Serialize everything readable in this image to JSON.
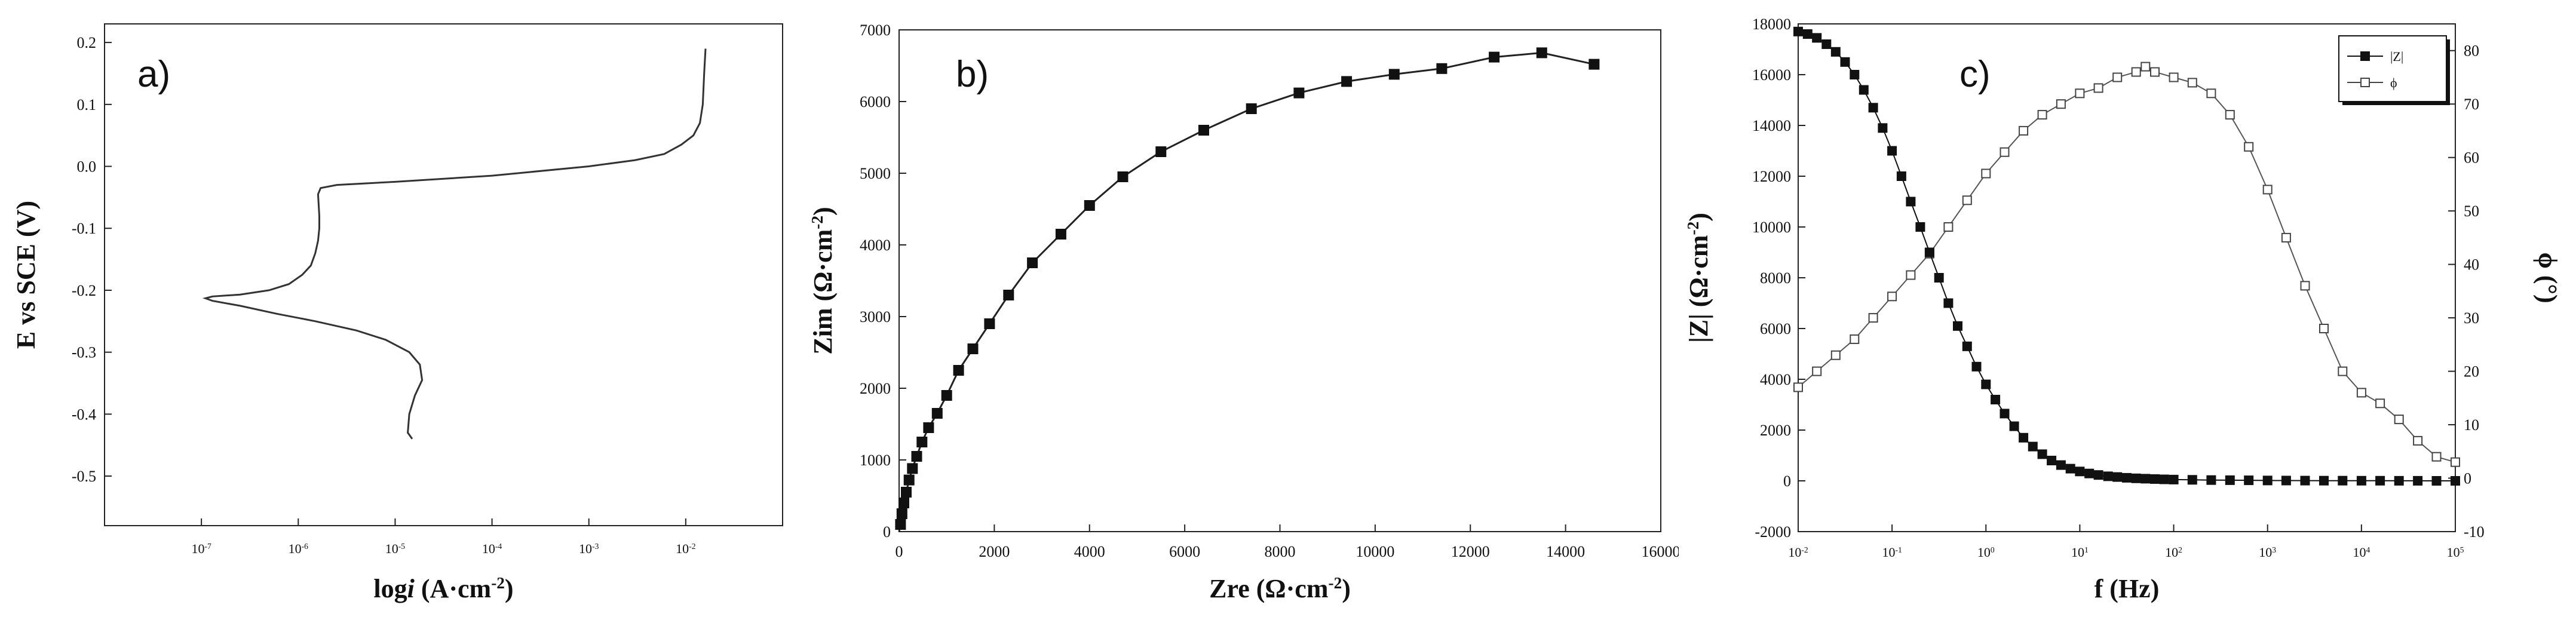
{
  "chart_data": [
    {
      "panel": "a)",
      "type": "line",
      "xlabel_main": "log",
      "xlabel_ital": "i",
      "xlabel_unit": " (A·cm",
      "xlabel_sup": "-2",
      "xlabel_end": ")",
      "ylabel": "E vs SCE (V)",
      "xscale": "log",
      "xlim": [
        1e-08,
        0.1
      ],
      "ylim": [
        -0.58,
        0.23
      ],
      "x_tick_labels": [
        {
          "base": "10",
          "exp": "-7",
          "value": 1e-07
        },
        {
          "base": "10",
          "exp": "-6",
          "value": 1e-06
        },
        {
          "base": "10",
          "exp": "-5",
          "value": 1e-05
        },
        {
          "base": "10",
          "exp": "-4",
          "value": 0.0001
        },
        {
          "base": "10",
          "exp": "-3",
          "value": 0.001
        },
        {
          "base": "10",
          "exp": "-2",
          "value": 0.01
        }
      ],
      "y_ticks": [
        -0.5,
        -0.4,
        -0.3,
        -0.2,
        -0.1,
        0.0,
        0.1,
        0.2
      ],
      "y_tick_labels": [
        "-0.5",
        "-0.4",
        "-0.3",
        "-0.2",
        "-0.1",
        "0.0",
        "0.1",
        "0.2"
      ],
      "series": [
        {
          "x": [
            1.5e-05,
            1.35e-05,
            1.4e-05,
            1.6e-05,
            1.9e-05,
            1.8e-05,
            1.4e-05,
            8e-06,
            4e-06,
            1.5e-06,
            6e-07,
            2.5e-07,
            1.3e-07,
            1.1e-07,
            1.3e-07,
            2.5e-07,
            5e-07,
            8e-07,
            1.1e-06,
            1.35e-06,
            1.5e-06,
            1.6e-06,
            1.65e-06,
            1.65e-06,
            1.62e-06,
            1.6e-06,
            1.7e-06,
            2.5e-06,
            1e-05,
            0.0001,
            0.001,
            0.003,
            0.006,
            0.009,
            0.012,
            0.014,
            0.015,
            0.0155,
            0.016
          ],
          "y": [
            -0.44,
            -0.43,
            -0.4,
            -0.37,
            -0.345,
            -0.32,
            -0.3,
            -0.28,
            -0.265,
            -0.25,
            -0.238,
            -0.225,
            -0.217,
            -0.213,
            -0.21,
            -0.207,
            -0.2,
            -0.19,
            -0.175,
            -0.16,
            -0.14,
            -0.12,
            -0.1,
            -0.08,
            -0.06,
            -0.045,
            -0.035,
            -0.03,
            -0.025,
            -0.015,
            0.0,
            0.01,
            0.02,
            0.035,
            0.05,
            0.07,
            0.1,
            0.15,
            0.19
          ]
        }
      ]
    },
    {
      "panel": "b)",
      "type": "line",
      "xlabel_main": "Zre (Ω·cm",
      "xlabel_sup": "-2",
      "xlabel_end": ")",
      "ylabel_main": "Zim (Ω·cm",
      "ylabel_sup": "-2",
      "ylabel_end": ")",
      "xlim": [
        0,
        16000
      ],
      "ylim": [
        0,
        7000
      ],
      "x_ticks": [
        0,
        2000,
        4000,
        6000,
        8000,
        10000,
        12000,
        14000,
        16000
      ],
      "x_tick_labels": [
        "0",
        "2000",
        "4000",
        "6000",
        "8000",
        "10000",
        "12000",
        "14000",
        "16000"
      ],
      "y_ticks": [
        0,
        1000,
        2000,
        3000,
        4000,
        5000,
        6000,
        7000
      ],
      "y_tick_labels": [
        "0",
        "1000",
        "2000",
        "3000",
        "4000",
        "5000",
        "6000",
        "7000"
      ],
      "series": [
        {
          "x": [
            30,
            60,
            100,
            150,
            210,
            280,
            370,
            480,
            620,
            800,
            1000,
            1250,
            1550,
            1900,
            2300,
            2800,
            3400,
            4000,
            4700,
            5500,
            6400,
            7400,
            8400,
            9400,
            10400,
            11400,
            12500,
            13500,
            14600
          ],
          "y": [
            100,
            250,
            400,
            550,
            720,
            880,
            1050,
            1250,
            1450,
            1650,
            1900,
            2250,
            2550,
            2900,
            3300,
            3750,
            4150,
            4550,
            4950,
            5300,
            5600,
            5900,
            6120,
            6280,
            6380,
            6460,
            6620,
            6680,
            6520
          ]
        }
      ]
    },
    {
      "panel": "c)",
      "type": "line",
      "xlabel": "f (Hz)",
      "ylabel_left_main": "|Z| (Ω·cm",
      "ylabel_left_sup": "-2",
      "ylabel_left_end": ")",
      "ylabel_right": "ϕ (°)",
      "xscale": "log",
      "xlim": [
        0.01,
        100000
      ],
      "ylim_left": [
        -2000,
        18000
      ],
      "ylim_right": [
        -10,
        85
      ],
      "x_tick_labels": [
        {
          "base": "10",
          "exp": "-2",
          "value": 0.01
        },
        {
          "base": "10",
          "exp": "-1",
          "value": 0.1
        },
        {
          "base": "10",
          "exp": "0",
          "value": 1
        },
        {
          "base": "10",
          "exp": "1",
          "value": 10
        },
        {
          "base": "10",
          "exp": "2",
          "value": 100
        },
        {
          "base": "10",
          "exp": "3",
          "value": 1000
        },
        {
          "base": "10",
          "exp": "4",
          "value": 10000
        },
        {
          "base": "10",
          "exp": "5",
          "value": 100000
        }
      ],
      "y_left_ticks": [
        -2000,
        0,
        2000,
        4000,
        6000,
        8000,
        10000,
        12000,
        14000,
        16000,
        18000
      ],
      "y_left_tick_labels": [
        "-2000",
        "0",
        "2000",
        "4000",
        "6000",
        "8000",
        "10000",
        "12000",
        "14000",
        "16000",
        "18000"
      ],
      "y_right_ticks": [
        -10,
        0,
        10,
        20,
        30,
        40,
        50,
        60,
        70,
        80
      ],
      "y_right_tick_labels": [
        "-10",
        "0",
        "10",
        "20",
        "30",
        "40",
        "50",
        "60",
        "70",
        "80"
      ],
      "legend": {
        "placement": "top-right",
        "entries": [
          "|Z|",
          "ϕ"
        ]
      },
      "series": [
        {
          "name": "|Z|",
          "axis": "left",
          "x": [
            0.01,
            0.0126,
            0.0158,
            0.02,
            0.0251,
            0.0316,
            0.0398,
            0.05,
            0.063,
            0.0794,
            0.1,
            0.126,
            0.158,
            0.2,
            0.251,
            0.316,
            0.398,
            0.5,
            0.63,
            0.794,
            1,
            1.26,
            1.58,
            2,
            2.51,
            3.16,
            3.98,
            5,
            6.3,
            7.94,
            10,
            12.6,
            15.8,
            20,
            25.1,
            31.6,
            39.8,
            50,
            63,
            79.4,
            100,
            158,
            251,
            398,
            630,
            1000,
            1580,
            2510,
            3980,
            6300,
            10000,
            15800,
            25100,
            39800,
            63000,
            100000
          ],
          "y": [
            17700,
            17600,
            17450,
            17200,
            16900,
            16500,
            16000,
            15400,
            14700,
            13900,
            13000,
            12000,
            11000,
            10000,
            9000,
            8000,
            7000,
            6100,
            5300,
            4500,
            3800,
            3200,
            2650,
            2150,
            1700,
            1350,
            1050,
            800,
            620,
            480,
            370,
            290,
            230,
            180,
            150,
            120,
            100,
            85,
            70,
            60,
            50,
            40,
            30,
            25,
            20,
            15,
            12,
            10,
            8,
            6,
            5,
            4,
            3,
            2,
            1,
            0
          ]
        },
        {
          "name": "ϕ",
          "axis": "right",
          "x": [
            0.01,
            0.0158,
            0.0251,
            0.0398,
            0.063,
            0.1,
            0.158,
            0.251,
            0.398,
            0.63,
            1,
            1.58,
            2.51,
            3.98,
            6.3,
            10,
            15.8,
            25.1,
            39.8,
            50,
            63,
            100,
            158,
            251,
            398,
            630,
            1000,
            1580,
            2510,
            3980,
            6300,
            10000,
            15800,
            25100,
            39800,
            63000,
            100000
          ],
          "y": [
            17,
            20,
            23,
            26,
            30,
            34,
            38,
            42,
            47,
            52,
            57,
            61,
            65,
            68,
            70,
            72,
            73,
            75,
            76,
            77,
            76,
            75,
            74,
            72,
            68,
            62,
            54,
            45,
            36,
            28,
            20,
            16,
            14,
            11,
            7,
            4,
            3
          ]
        }
      ]
    }
  ]
}
